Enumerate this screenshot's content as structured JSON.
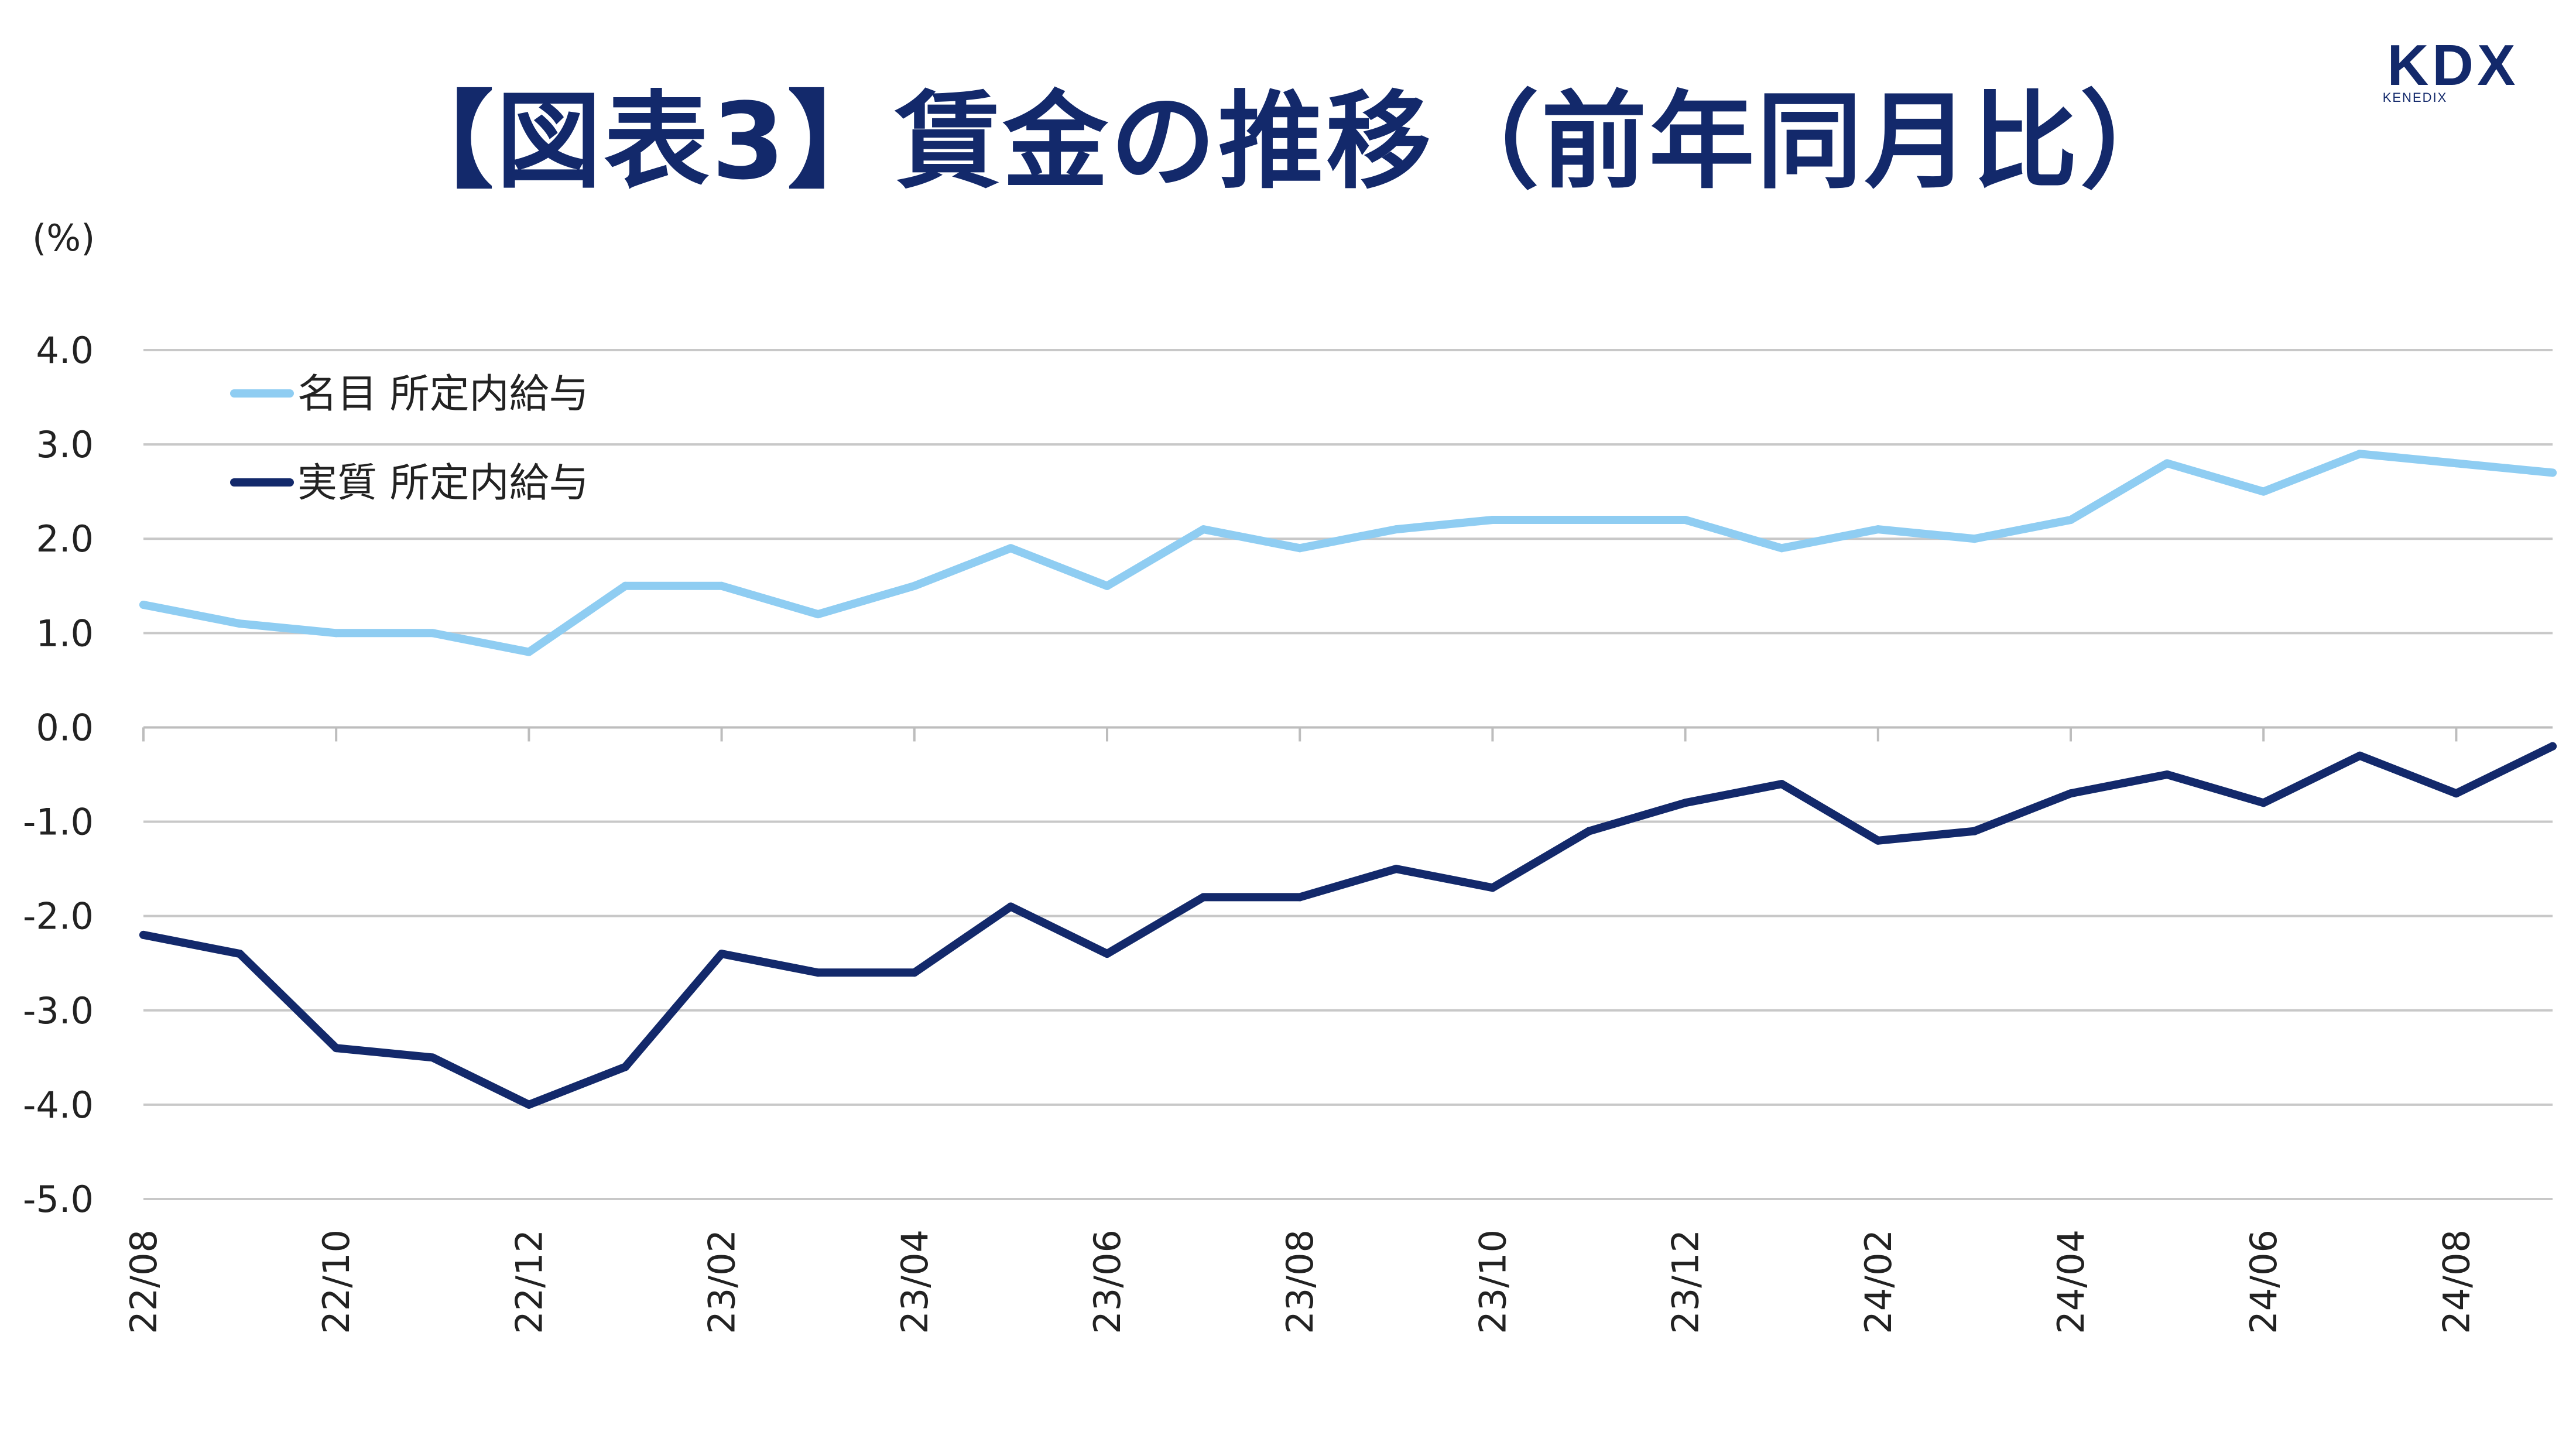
{
  "header": {
    "title": "【図表3】賃金の推移（前年同月比）",
    "logo_text": "KDX",
    "logo_subtext": "KENEDIX"
  },
  "chart_data": {
    "type": "line",
    "title": "【図表3】賃金の推移（前年同月比）",
    "ylabel": "(%)",
    "xlabel": "",
    "ylim": [
      -5.0,
      4.0
    ],
    "yticks": [
      "4.0",
      "3.0",
      "2.0",
      "1.0",
      "0.0",
      "-1.0",
      "-2.0",
      "-3.0",
      "-4.0",
      "-5.0"
    ],
    "grid": true,
    "legend_position": "top-left",
    "x": [
      "22/08",
      "22/09",
      "22/10",
      "22/11",
      "22/12",
      "23/01",
      "23/02",
      "23/03",
      "23/04",
      "23/05",
      "23/06",
      "23/07",
      "23/08",
      "23/09",
      "23/10",
      "23/11",
      "23/12",
      "24/01",
      "24/02",
      "24/03",
      "24/04",
      "24/05",
      "24/06",
      "24/07",
      "24/08",
      "24/09"
    ],
    "x_tick_labels": [
      "22/08",
      "22/10",
      "22/12",
      "23/02",
      "23/04",
      "23/06",
      "23/08",
      "23/10",
      "23/12",
      "24/02",
      "24/04",
      "24/06",
      "24/08"
    ],
    "series": [
      {
        "name": "名目 所定内給与",
        "color": "#8fcdf2",
        "values": [
          1.3,
          1.1,
          1.0,
          1.0,
          0.8,
          1.5,
          1.5,
          1.2,
          1.5,
          1.9,
          1.5,
          2.1,
          1.9,
          2.1,
          2.2,
          2.2,
          2.2,
          1.9,
          2.1,
          2.0,
          2.2,
          2.8,
          2.5,
          2.9,
          2.8,
          2.7
        ]
      },
      {
        "name": "実質 所定内給与",
        "color": "#13296b",
        "values": [
          -2.2,
          -2.4,
          -3.4,
          -3.5,
          -4.0,
          -3.6,
          -2.4,
          -2.6,
          -2.6,
          -1.9,
          -2.4,
          -1.8,
          -1.8,
          -1.5,
          -1.7,
          -1.1,
          -0.8,
          -0.6,
          -1.2,
          -1.1,
          -0.7,
          -0.5,
          -0.8,
          -0.3,
          -0.7,
          -0.2
        ]
      }
    ]
  }
}
